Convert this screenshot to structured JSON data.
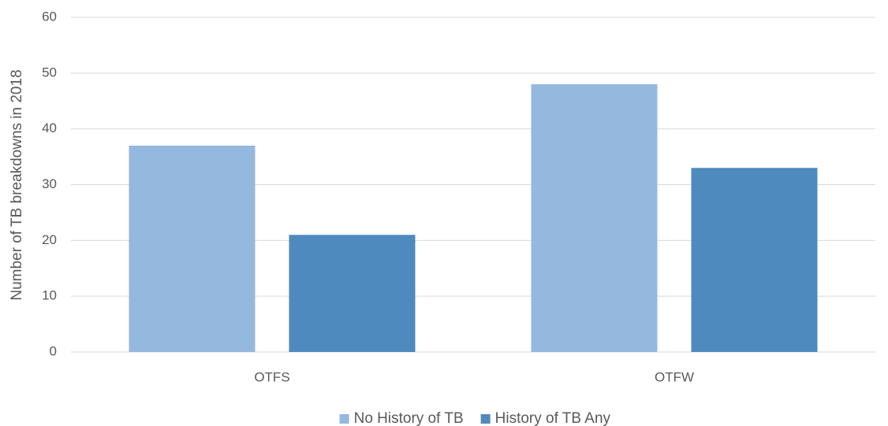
{
  "chart_data": {
    "type": "bar",
    "y_label": "Number of TB breakdowns in 2018",
    "categories": [
      "OTFS",
      "OTFW"
    ],
    "series": [
      {
        "name": "No History of TB",
        "color": "#95b8df",
        "values": [
          37,
          48
        ]
      },
      {
        "name": "History of TB Any",
        "color": "#4e8abe",
        "values": [
          21,
          33
        ]
      }
    ],
    "ylim": [
      0,
      60
    ],
    "yticks": [
      0,
      10,
      20,
      30,
      40,
      50,
      60
    ],
    "grid": true,
    "legend": "bottom"
  }
}
